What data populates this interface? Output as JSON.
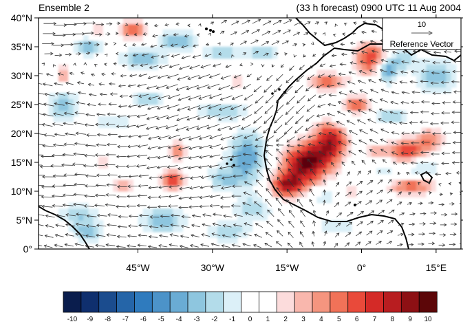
{
  "chart_data": {
    "type": "heatmap",
    "title_left": "Ensemble 2",
    "title_right": "(33 h forecast) 0900 UTC 11 Aug 2004",
    "lon_range": [
      -65,
      20
    ],
    "lat_range": [
      0,
      40
    ],
    "x_ticks": [
      {
        "value": -45,
        "label": "45°W"
      },
      {
        "value": -30,
        "label": "30°W"
      },
      {
        "value": -15,
        "label": "15°W"
      },
      {
        "value": 0,
        "label": "0°"
      },
      {
        "value": 15,
        "label": "15°E"
      }
    ],
    "y_ticks": [
      {
        "value": 0,
        "label": "0°"
      },
      {
        "value": 5,
        "label": "5°N"
      },
      {
        "value": 10,
        "label": "10°N"
      },
      {
        "value": 15,
        "label": "15°N"
      },
      {
        "value": 20,
        "label": "20°N"
      },
      {
        "value": 25,
        "label": "25°N"
      },
      {
        "value": 30,
        "label": "30°N"
      },
      {
        "value": 35,
        "label": "35°N"
      },
      {
        "value": 40,
        "label": "40°N"
      }
    ],
    "reference_vector": {
      "magnitude": 10,
      "magnitude_label": "10",
      "label": "Reference Vector"
    },
    "colorbar": {
      "labels": [
        "-10",
        "-9",
        "-8",
        "-7",
        "-6",
        "-5",
        "-4",
        "-3",
        "-2",
        "-1",
        "0",
        "1",
        "2",
        "3",
        "4",
        "5",
        "6",
        "7",
        "8",
        "9",
        "10"
      ],
      "colors": [
        "#0a1d4d",
        "#0f2f6e",
        "#1b4c8e",
        "#2565a8",
        "#2f7bbe",
        "#4c93c9",
        "#6aacd4",
        "#8ec6df",
        "#b3dcea",
        "#dcf0f8",
        "#ffffff",
        "#ffffff",
        "#fcdcdc",
        "#f9b7ad",
        "#f5957f",
        "#f17258",
        "#e94a3a",
        "#d42a27",
        "#b81d20",
        "#8d1014",
        "#5c0608"
      ]
    },
    "anomaly_centers": [
      {
        "lon": -11,
        "lat": 15,
        "value": 10,
        "sx": 3.5,
        "sy": 2.5
      },
      {
        "lon": -6,
        "lat": 19,
        "value": 8,
        "sx": 2.5,
        "sy": 2.5
      },
      {
        "lon": -15,
        "lat": 11,
        "value": 8,
        "sx": 2.5,
        "sy": 1.6
      },
      {
        "lon": -1,
        "lat": 25,
        "value": 6,
        "sx": 2.0,
        "sy": 1.2
      },
      {
        "lon": -7,
        "lat": 29,
        "value": 6,
        "sx": 3.0,
        "sy": 1.1
      },
      {
        "lon": 2,
        "lat": 33,
        "value": 7,
        "sx": 2.5,
        "sy": 2.2
      },
      {
        "lon": 9,
        "lat": 17,
        "value": 7,
        "sx": 2.5,
        "sy": 1.6
      },
      {
        "lon": 14,
        "lat": 19,
        "value": 5,
        "sx": 2.0,
        "sy": 1.5
      },
      {
        "lon": 10,
        "lat": 11,
        "value": 6,
        "sx": 3.5,
        "sy": 1.2
      },
      {
        "lon": 3,
        "lat": 17,
        "value": 4,
        "sx": 1.5,
        "sy": 1.0
      },
      {
        "lon": -38,
        "lat": 12,
        "value": 7,
        "sx": 1.8,
        "sy": 1.2
      },
      {
        "lon": -37,
        "lat": 17,
        "value": 5,
        "sx": 1.2,
        "sy": 1.4
      },
      {
        "lon": -46,
        "lat": 38,
        "value": 6,
        "sx": 2.2,
        "sy": 1.2
      },
      {
        "lon": -60,
        "lat": 30,
        "value": 4,
        "sx": 1.2,
        "sy": 2.0
      },
      {
        "lon": -25,
        "lat": 29,
        "value": 3,
        "sx": 1.8,
        "sy": 1.0
      },
      {
        "lon": -48,
        "lat": 11,
        "value": 4,
        "sx": 1.5,
        "sy": 1.0
      },
      {
        "lon": -32,
        "lat": 11,
        "value": 3,
        "sx": 1.2,
        "sy": 1.0
      },
      {
        "lon": -2,
        "lat": 10,
        "value": 3,
        "sx": 1.5,
        "sy": 1.0
      },
      {
        "lon": -52,
        "lat": 15,
        "value": 3,
        "sx": 1.2,
        "sy": 1.0
      },
      {
        "lon": -53,
        "lat": 38,
        "value": 3,
        "sx": 1.5,
        "sy": 1.0
      },
      {
        "lon": -23,
        "lat": 16,
        "value": -5,
        "sx": 2.5,
        "sy": 3.0
      },
      {
        "lon": -28,
        "lat": 12,
        "value": -3,
        "sx": 3.0,
        "sy": 1.5
      },
      {
        "lon": -22,
        "lat": 7,
        "value": -3,
        "sx": 2.5,
        "sy": 1.5
      },
      {
        "lon": -40,
        "lat": 5,
        "value": -4,
        "sx": 3.0,
        "sy": 1.5
      },
      {
        "lon": -27,
        "lat": 3,
        "value": -3,
        "sx": 3.0,
        "sy": 1.2
      },
      {
        "lon": -55,
        "lat": 3,
        "value": -4,
        "sx": 2.0,
        "sy": 1.2
      },
      {
        "lon": -57,
        "lat": 6,
        "value": -3,
        "sx": 2.5,
        "sy": 1.2
      },
      {
        "lon": -44,
        "lat": 33,
        "value": -4,
        "sx": 2.8,
        "sy": 1.2
      },
      {
        "lon": -28,
        "lat": 34,
        "value": -3,
        "sx": 2.5,
        "sy": 1.0
      },
      {
        "lon": -20,
        "lat": 34,
        "value": -3,
        "sx": 2.5,
        "sy": 1.0
      },
      {
        "lon": -37,
        "lat": 36,
        "value": -4,
        "sx": 2.5,
        "sy": 1.2
      },
      {
        "lon": -55,
        "lat": 35,
        "value": -4,
        "sx": 2.0,
        "sy": 1.0
      },
      {
        "lon": -60,
        "lat": 25,
        "value": -4,
        "sx": 2.0,
        "sy": 2.0
      },
      {
        "lon": -43,
        "lat": 26,
        "value": -3,
        "sx": 2.5,
        "sy": 1.0
      },
      {
        "lon": -28,
        "lat": 24,
        "value": -3,
        "sx": 3.5,
        "sy": 1.0
      },
      {
        "lon": -50,
        "lat": 22,
        "value": -2,
        "sx": 2.5,
        "sy": 1.0
      },
      {
        "lon": 5,
        "lat": 31,
        "value": -6,
        "sx": 1.5,
        "sy": 1.5
      },
      {
        "lon": 8,
        "lat": 33,
        "value": -3,
        "sx": 2.0,
        "sy": 1.5
      },
      {
        "lon": 15,
        "lat": 30,
        "value": -4,
        "sx": 2.5,
        "sy": 2.0
      },
      {
        "lon": -3,
        "lat": 22,
        "value": -3,
        "sx": 2.0,
        "sy": 1.0
      },
      {
        "lon": 6,
        "lat": 23,
        "value": -3,
        "sx": 2.5,
        "sy": 1.0
      },
      {
        "lon": 12,
        "lat": 14,
        "value": -3,
        "sx": 2.5,
        "sy": 1.2
      },
      {
        "lon": -8,
        "lat": 9,
        "value": -2,
        "sx": 2.5,
        "sy": 1.0
      },
      {
        "lon": 5,
        "lat": 13,
        "value": -2,
        "sx": 2.0,
        "sy": 1.0
      },
      {
        "lon": -5,
        "lat": 4,
        "value": -2,
        "sx": 3.0,
        "sy": 1.0
      }
    ],
    "wind_field": [
      {
        "lon": -65,
        "lat": 40,
        "u": 6,
        "v": 0
      },
      {
        "lon": -20,
        "lat": 40,
        "u": 4,
        "v": 2
      },
      {
        "lon": -65,
        "lat": 24,
        "u": -5,
        "v": 1
      },
      {
        "lon": -30,
        "lat": 24,
        "u": -6,
        "v": -2
      },
      {
        "lon": -15,
        "lat": 24,
        "u": -4,
        "v": -4
      },
      {
        "lon": -65,
        "lat": 12,
        "u": -6,
        "v": 0
      },
      {
        "lon": -30,
        "lat": 12,
        "u": -5,
        "v": -1
      },
      {
        "lon": -15,
        "lat": 12,
        "u": -3,
        "v": 4
      },
      {
        "lon": 0,
        "lat": 20,
        "u": -4,
        "v": 2
      },
      {
        "lon": 15,
        "lat": 20,
        "u": -4,
        "v": 0
      },
      {
        "lon": 0,
        "lat": 8,
        "u": 3,
        "v": 2
      },
      {
        "lon": -65,
        "lat": 2,
        "u": -4,
        "v": 1
      },
      {
        "lon": -30,
        "lat": 2,
        "u": -4,
        "v": 1
      },
      {
        "lon": 15,
        "lat": 2,
        "u": 3,
        "v": 0
      }
    ]
  }
}
